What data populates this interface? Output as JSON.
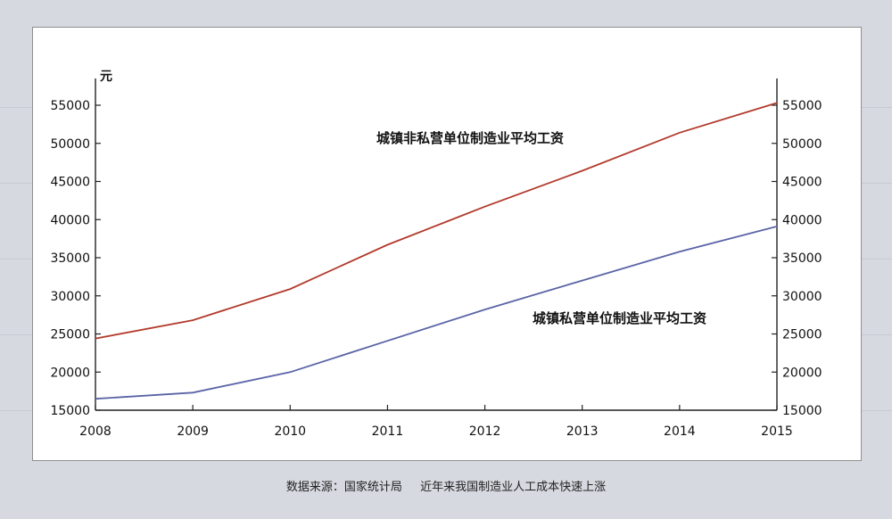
{
  "chart_data": {
    "type": "line",
    "x": [
      2008,
      2009,
      2010,
      2011,
      2012,
      2013,
      2014,
      2015
    ],
    "series": [
      {
        "name": "城镇非私营单位制造业平均工资",
        "values": [
          24400,
          26800,
          30900,
          36700,
          41700,
          46400,
          51400,
          55300
        ],
        "color": "#b23a2c"
      },
      {
        "name": "城镇私营单位制造业平均工资",
        "values": [
          16500,
          17300,
          20000,
          24100,
          28200,
          32000,
          35800,
          39100
        ],
        "color": "#5a64a6"
      }
    ],
    "ylabel": "元",
    "ylim": [
      15000,
      55000
    ],
    "yticks": [
      15000,
      20000,
      25000,
      30000,
      35000,
      40000,
      45000,
      50000,
      55000
    ],
    "xticks": [
      "2008",
      "2009",
      "2010",
      "2011",
      "2012",
      "2013",
      "2014",
      "2015"
    ],
    "grid": false,
    "legend": "inline labels"
  },
  "caption": {
    "source": "数据来源：国家统计局",
    "title": "近年来我国制造业人工成本快速上涨"
  }
}
